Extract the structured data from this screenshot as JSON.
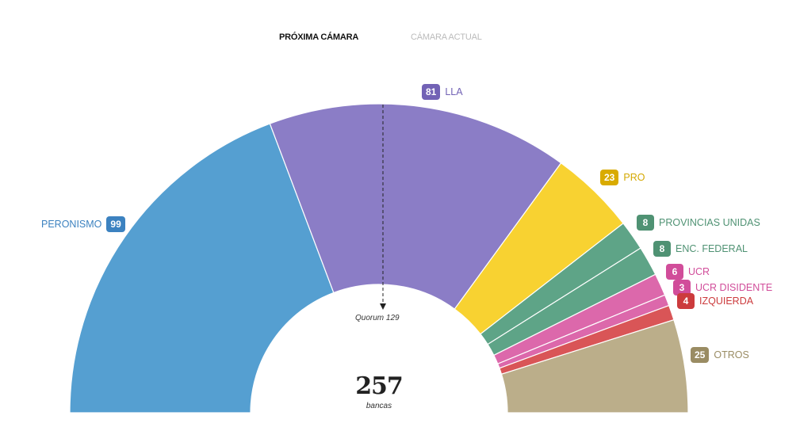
{
  "tabs": [
    {
      "label": "PRÓXIMA CÁMARA",
      "active": true
    },
    {
      "label": "CÁMARA ACTUAL",
      "active": false
    }
  ],
  "chart_data": {
    "type": "pie",
    "subtype": "semicircle-parliament",
    "total": 257,
    "total_label": "257",
    "unit_label": "bancas",
    "quorum": 129,
    "quorum_label": "Quorum 129",
    "series": [
      {
        "name": "PERONISMO",
        "value": 99,
        "color": "#559fd1",
        "label_color": "#3c82c0"
      },
      {
        "name": "LLA",
        "value": 81,
        "color": "#8b7dc6",
        "label_color": "#7262b5"
      },
      {
        "name": "PRO",
        "value": 23,
        "color": "#f8d231",
        "label_color": "#d4a800"
      },
      {
        "name": "PROVINCIAS UNIDAS",
        "value": 8,
        "color": "#5ea487",
        "label_color": "#4f9273"
      },
      {
        "name": "ENC. FEDERAL",
        "value": 8,
        "color": "#5ea487",
        "label_color": "#4f9273"
      },
      {
        "name": "UCR",
        "value": 6,
        "color": "#dc68ab",
        "label_color": "#d14d9a"
      },
      {
        "name": "UCR DISIDENTE",
        "value": 3,
        "color": "#dc68ab",
        "label_color": "#d14d9a"
      },
      {
        "name": "IZQUIERDA",
        "value": 4,
        "color": "#d95557",
        "label_color": "#cc3b3d"
      },
      {
        "name": "OTROS",
        "value": 25,
        "color": "#bbae8a",
        "label_color": "#9a8c63"
      }
    ]
  }
}
